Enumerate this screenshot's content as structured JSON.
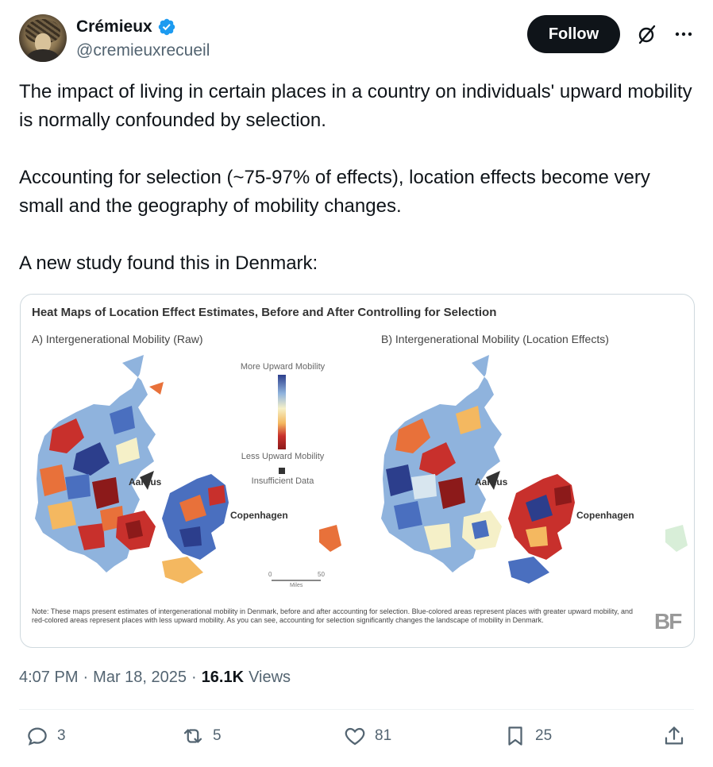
{
  "author": {
    "display_name": "Crémieux",
    "handle": "@cremieuxrecueil",
    "verified": true
  },
  "header": {
    "follow_label": "Follow"
  },
  "tweet": {
    "paragraphs": [
      "The impact of living in certain places in a country on individuals' upward mobility is normally confounded by selection.",
      "Accounting for selection (~75-97% of effects), location effects become very small and the geography of mobility changes.",
      "A new study found this in Denmark:"
    ]
  },
  "figure": {
    "title": "Heat Maps of Location Effect Estimates, Before and After Controlling for Selection",
    "panel_a": "A) Intergenerational Mobility (Raw)",
    "panel_b": "B) Intergenerational Mobility (Location Effects)",
    "legend_top": "More Upward Mobility",
    "legend_bottom": "Less Upward Mobility",
    "legend_na": "Insufficient Data",
    "city_aarhus": "Aarhus",
    "city_copenhagen": "Copenhagen",
    "scale_zero": "0",
    "scale_fifty": "50",
    "scale_unit": "Miles",
    "note": "Note: These maps present estimates of intergenerational mobility in Denmark, before and after accounting for selection. Blue-colored areas represent places with greater upward mobility, and red-colored areas represent places with less upward mobility. As you can see, accounting for selection significantly changes the landscape of mobility in Denmark.",
    "logo": "BF",
    "colors": [
      "#2c3e8c",
      "#4a6fbf",
      "#8fb3dd",
      "#d8e6ef",
      "#f5f0c8",
      "#f4b860",
      "#e8713a",
      "#c8302c",
      "#8c1a1a"
    ]
  },
  "meta": {
    "time": "4:07 PM",
    "date": "Mar 18, 2025",
    "separator": "·",
    "views_count": "16.1K",
    "views_label": "Views"
  },
  "actions": {
    "replies": "3",
    "reposts": "5",
    "likes": "81",
    "bookmarks": "25"
  }
}
